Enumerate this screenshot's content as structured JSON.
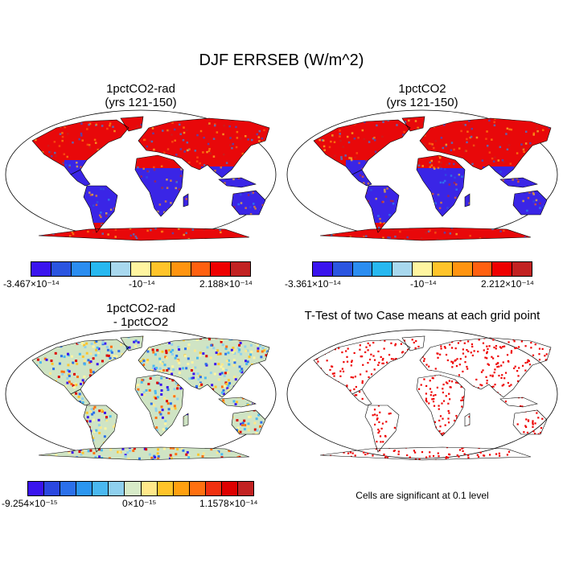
{
  "title": "DJF ERRSEB (W/m^2)",
  "panels": [
    {
      "title1": "1pctCO2-rad",
      "title2": "(yrs 121-150)"
    },
    {
      "title1": "1pctCO2",
      "title2": "(yrs 121-150)"
    },
    {
      "title1": "1pctCO2-rad",
      "title2": "- 1pctCO2"
    },
    {
      "title1": "T-Test of two Case means at each grid point",
      "title2": ""
    }
  ],
  "colorbars": [
    {
      "colors": [
        "#3a14ee",
        "#2b55e0",
        "#2b8df0",
        "#27b8f0",
        "#a8d8ee",
        "#fff5a0",
        "#ffc42a",
        "#ff9410",
        "#ff6010",
        "#ee0000",
        "#c22222"
      ],
      "labels": [
        "-3.467×10⁻¹⁴",
        "-10⁻¹⁴",
        "2.188×10⁻¹⁴"
      ]
    },
    {
      "colors": [
        "#3a14ee",
        "#2b55e0",
        "#2b8df0",
        "#27b8f0",
        "#a8d8ee",
        "#fff5a0",
        "#ffc42a",
        "#ff9410",
        "#ff6010",
        "#ee0000",
        "#c22222"
      ],
      "labels": [
        "-3.361×10⁻¹⁴",
        "-10⁻¹⁴",
        "2.212×10⁻¹⁴"
      ]
    },
    {
      "colors": [
        "#3a14ee",
        "#2b48e0",
        "#2b70ea",
        "#2b96f0",
        "#4ab8f0",
        "#8fd0ee",
        "#d7ebc8",
        "#ffe88a",
        "#ffc42a",
        "#ffa010",
        "#ff7010",
        "#f03010",
        "#dd0000",
        "#c22222"
      ],
      "labels": [
        "-9.254×10⁻¹⁵",
        "0×10⁻¹⁵",
        "1.1578×10⁻¹⁴"
      ]
    }
  ],
  "note": "Cells are significant at 0.1 level",
  "colors": {
    "warm": "#e8080a",
    "cold": "#3a25e6",
    "diff_bg": "#cfe4c4",
    "sig": "#ee0000"
  }
}
